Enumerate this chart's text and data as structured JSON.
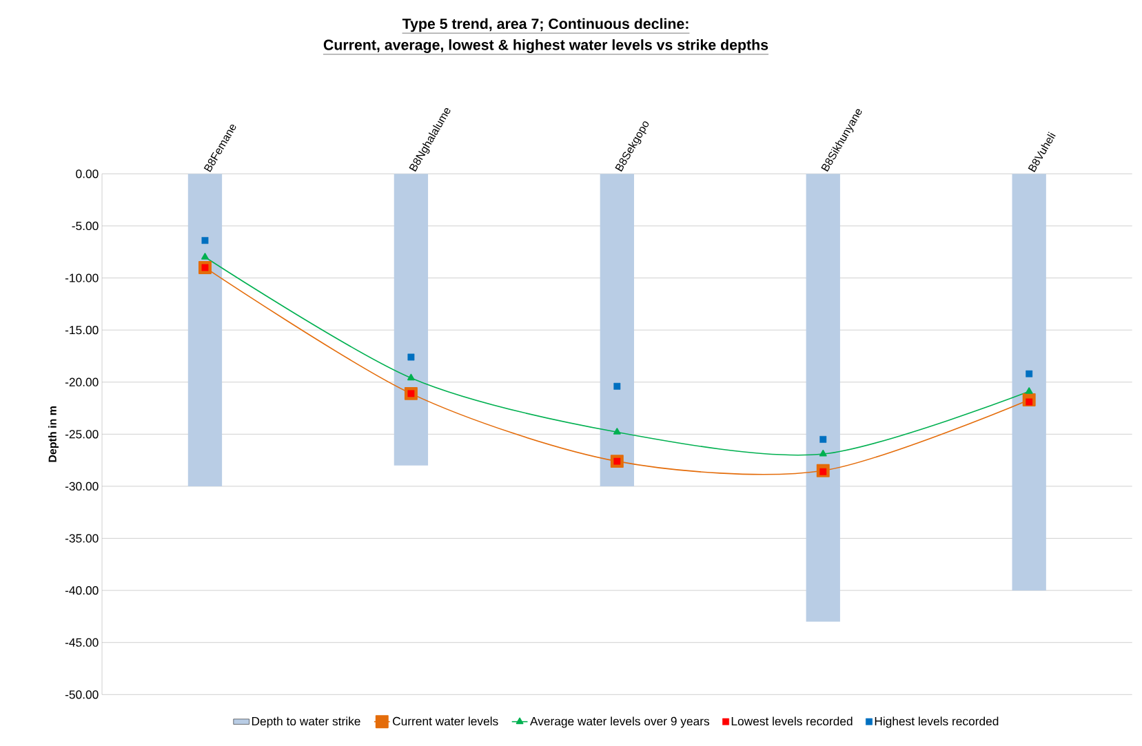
{
  "chart_data": {
    "type": "line",
    "title": "Type 5 trend,  area 7; Continuous decline:",
    "subtitle": "Current, average, lowest & highest water levels vs strike depths",
    "ylabel": "Depth in m",
    "categories": [
      "B8Femane",
      "B8Nghalalume",
      "B8Sekgopo",
      "B8Sikhunyane",
      "B8Vuheli"
    ],
    "series": [
      {
        "name": "Depth to water strike",
        "type": "bar",
        "color": "#b9cde5",
        "values": [
          -30,
          -28,
          -30,
          -43,
          -40
        ]
      },
      {
        "name": "Current water levels",
        "color": "#e46c0a",
        "marker": "square",
        "values": [
          -9.0,
          -21.1,
          -27.6,
          -28.5,
          -21.7
        ]
      },
      {
        "name": "Average water levels over 9 years",
        "color": "#00b050",
        "marker": "triangle",
        "values": [
          -8.0,
          -19.6,
          -24.8,
          -26.9,
          -20.9
        ]
      },
      {
        "name": "Lowest  levels recorded",
        "type": "scatter",
        "color": "#ff0000",
        "marker": "square",
        "values": [
          -9.0,
          -21.1,
          -27.6,
          -28.6,
          -21.9
        ]
      },
      {
        "name": "Highest  levels recorded",
        "type": "scatter",
        "color": "#0070c0",
        "marker": "square",
        "values": [
          -6.4,
          -17.6,
          -20.4,
          -25.5,
          -19.2
        ]
      }
    ],
    "ylim": [
      -50,
      0
    ],
    "yticks": [
      {
        "value": 0,
        "label": "0.00"
      },
      {
        "value": -5,
        "label": "-5.00"
      },
      {
        "value": -10,
        "label": "-10.00"
      },
      {
        "value": -15,
        "label": "-15.00"
      },
      {
        "value": -20,
        "label": "-20.00"
      },
      {
        "value": -25,
        "label": "-25.00"
      },
      {
        "value": -30,
        "label": "-30.00"
      },
      {
        "value": -35,
        "label": "-35.00"
      },
      {
        "value": -40,
        "label": "-40.00"
      },
      {
        "value": -45,
        "label": "-45.00"
      },
      {
        "value": -50,
        "label": "-50.00"
      }
    ],
    "grid": "y",
    "legend": "bottom"
  }
}
